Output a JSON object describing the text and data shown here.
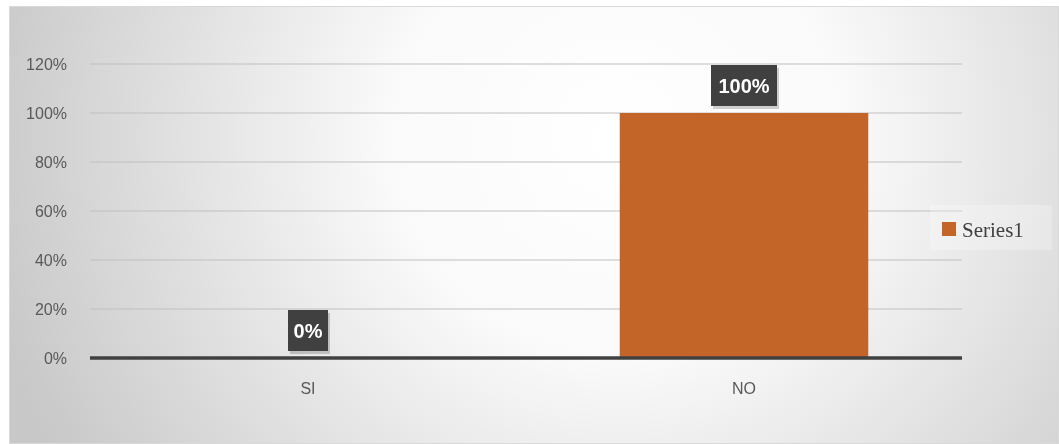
{
  "chart_data": {
    "type": "bar",
    "categories": [
      "SI",
      "NO"
    ],
    "series": [
      {
        "name": "Series1",
        "color": "#c36528",
        "values": [
          0,
          100
        ],
        "value_labels": [
          "0%",
          "100%"
        ]
      }
    ],
    "ylim": [
      0,
      120
    ],
    "yticks": [
      {
        "value": 0,
        "label": "0%"
      },
      {
        "value": 20,
        "label": "20%"
      },
      {
        "value": 40,
        "label": "40%"
      },
      {
        "value": 60,
        "label": "60%"
      },
      {
        "value": 80,
        "label": "80%"
      },
      {
        "value": 100,
        "label": "100%"
      },
      {
        "value": 120,
        "label": "120%"
      }
    ],
    "grid": "y",
    "legend": "right"
  }
}
